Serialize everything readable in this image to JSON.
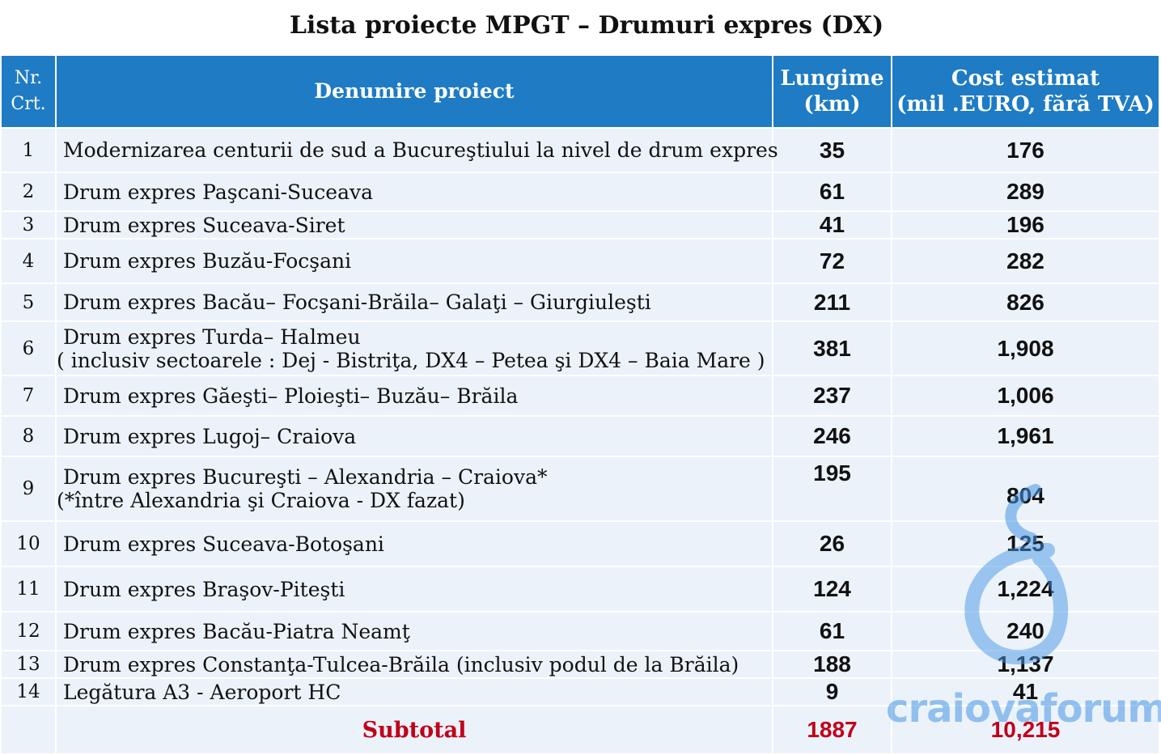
{
  "title": "Lista proiecte MPGT – Drumuri expres (DX)",
  "header": {
    "nr_line1": "Nr.",
    "nr_line2": "Crt.",
    "name": "Denumire proiect",
    "length_line1": "Lungime",
    "length_line2": "(km)",
    "cost_line1": "Cost estimat",
    "cost_line2": "(mil .EURO, fără TVA)"
  },
  "rows": [
    {
      "nr": "1",
      "name": "Modernizarea centurii de sud a Bucureştiului  la nivel de drum expres",
      "length": "35",
      "cost": "176"
    },
    {
      "nr": "2",
      "name": "Drum expres Paşcani-Suceava",
      "length": "61",
      "cost": "289"
    },
    {
      "nr": "3",
      "name": "Drum expres Suceava-Siret",
      "length": "41",
      "cost": "196"
    },
    {
      "nr": "4",
      "name": "Drum expres Buzău-Focşani",
      "length": "72",
      "cost": "282"
    },
    {
      "nr": "5",
      "name": "Drum expres Bacău– Focşani-Brăila– Galaţi – Giurgiuleşti",
      "length": "211",
      "cost": "826"
    },
    {
      "nr": "6",
      "name": "Drum expres Turda– Halmeu",
      "name2": "( inclusiv sectoarele : Dej - Bistriţa, DX4 – Petea şi DX4 – Baia Mare )",
      "length": "381",
      "cost": "1,908"
    },
    {
      "nr": "7",
      "name": "Drum expres Găeşti– Ploieşti– Buzău– Brăila",
      "length": "237",
      "cost": "1,006"
    },
    {
      "nr": "8",
      "name": "Drum expres Lugoj–  Craiova",
      "length": "246",
      "cost": "1,961"
    },
    {
      "nr": "9",
      "name": "Drum expres Bucureşti – Alexandria – Craiova*",
      "name2": "(*între Alexandria şi Craiova - DX fazat)",
      "length": "195",
      "cost": "804"
    },
    {
      "nr": "10",
      "name": "Drum expres Suceava-Botoşani",
      "length": "26",
      "cost": "125"
    },
    {
      "nr": "11",
      "name": "Drum expres Braşov-Piteşti",
      "length": "124",
      "cost": "1,224"
    },
    {
      "nr": "12",
      "name": "Drum expres Bacău-Piatra Neamţ",
      "length": "61",
      "cost": "240"
    },
    {
      "nr": "13",
      "name": "Drum expres Constanţa-Tulcea-Brăila (inclusiv podul de la Brăila)",
      "length": "188",
      "cost": "1,137"
    },
    {
      "nr": "14",
      "name": "Legătura A3 - Aeroport HC",
      "length": "9",
      "cost": "41"
    }
  ],
  "subtotal": {
    "label": "Subtotal",
    "length": "1887",
    "cost": "10,215"
  },
  "watermark": {
    "text": "craiovaforum",
    "icon": "craiovaforum-logo-icon",
    "color": "#4696e6"
  },
  "colors": {
    "header_bg": "#1e7bc4",
    "row_bg": "#ecf2f9",
    "subtotal_text": "#c0001a"
  }
}
